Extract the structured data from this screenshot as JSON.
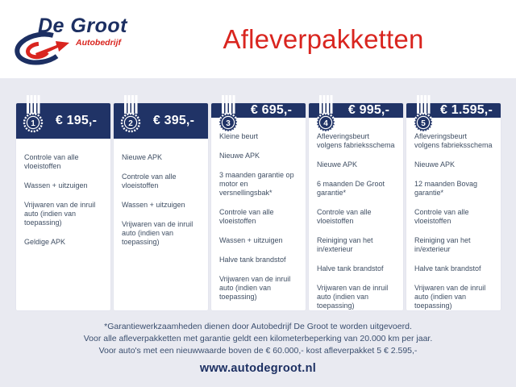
{
  "header": {
    "logo": {
      "name": "De Groot",
      "subtitle": "Autobedrijf",
      "emblem_icon": "degroot-swoosh-arrow-icon"
    },
    "title": "Afleverpakketten"
  },
  "packages": [
    {
      "number": "1",
      "price": "€ 195,-",
      "icon": "medal-1-icon",
      "items": [
        "Controle van alle vloeistoffen",
        "Wassen + uitzuigen",
        "Vrijwaren van de inruil auto (indien van toepassing)",
        "Geldige APK"
      ]
    },
    {
      "number": "2",
      "price": "€ 395,-",
      "icon": "medal-2-icon",
      "items": [
        "Nieuwe APK",
        "Controle van alle vloeistoffen",
        "Wassen + uitzuigen",
        "Vrijwaren van de inruil auto (indien van toepassing)"
      ]
    },
    {
      "number": "3",
      "price": "€ 695,-",
      "icon": "medal-3-icon",
      "items": [
        "Kleine beurt",
        "Nieuwe APK",
        "3 maanden garantie op motor en versnellingsbak*",
        "Controle van alle vloeistoffen",
        "Wassen + uitzuigen",
        "Halve tank brandstof",
        "Vrijwaren van de inruil auto (indien van toepassing)"
      ]
    },
    {
      "number": "4",
      "price": "€ 995,-",
      "icon": "medal-4-icon",
      "items": [
        "Afleveringsbeurt volgens fabrieksschema",
        "Nieuwe APK",
        "6 maanden De Groot garantie*",
        "Controle van alle vloeistoffen",
        "Reiniging van het in/exterieur",
        "Halve tank brandstof",
        "Vrijwaren van de inruil auto (indien van toepassing)"
      ]
    },
    {
      "number": "5",
      "price": "€ 1.595,-",
      "icon": "medal-5-icon",
      "items": [
        "Afleveringsbeurt volgens fabrieksschema",
        "Nieuwe APK",
        "12 maanden Bovag garantie*",
        "Controle van alle vloeistoffen",
        "Reiniging van het in/exterieur",
        "Halve tank brandstof",
        "Vrijwaren van de inruil auto (indien van toepassing)"
      ]
    }
  ],
  "footer": {
    "notes": [
      "*Garantiewerkzaamheden dienen door Autobedrijf De Groot te worden uitgevoerd.",
      "Voor alle afleverpakketten met garantie geldt een kilometerbeperking van 20.000 km per jaar.",
      "Voor auto's met een nieuwwaarde boven de € 60.000,- kost afleverpakket 5 € 2.595,-"
    ],
    "website": "www.autodegroot.nl"
  },
  "colors": {
    "navy": "#203366",
    "red": "#d9251f",
    "background": "#e9eaf1",
    "card": "#ffffff",
    "list_text": "#3f4e63"
  }
}
